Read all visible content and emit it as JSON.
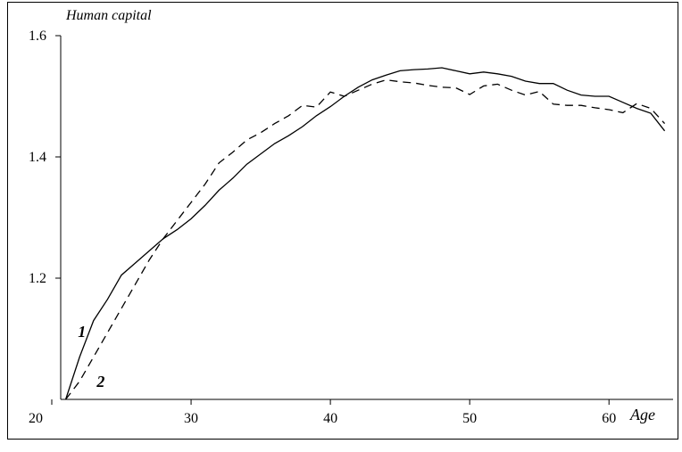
{
  "chart_data": {
    "type": "line",
    "y_label": "Human capital",
    "x_label": "Age",
    "x": [
      21,
      22,
      23,
      24,
      25,
      26,
      27,
      28,
      29,
      30,
      31,
      32,
      33,
      34,
      35,
      36,
      37,
      38,
      39,
      40,
      41,
      42,
      43,
      44,
      45,
      46,
      47,
      48,
      49,
      50,
      51,
      52,
      53,
      54,
      55,
      56,
      57,
      58,
      59,
      60,
      61,
      62,
      63,
      64
    ],
    "series": [
      {
        "name": "1",
        "color": "#000000",
        "dash": "solid",
        "values": [
          1.0,
          1.07,
          1.13,
          1.165,
          1.205,
          1.225,
          1.245,
          1.265,
          1.28,
          1.298,
          1.32,
          1.345,
          1.365,
          1.388,
          1.405,
          1.422,
          1.435,
          1.45,
          1.468,
          1.483,
          1.5,
          1.515,
          1.527,
          1.535,
          1.542,
          1.544,
          1.545,
          1.547,
          1.542,
          1.537,
          1.54,
          1.537,
          1.533,
          1.525,
          1.521,
          1.521,
          1.51,
          1.502,
          1.5,
          1.5,
          1.49,
          1.48,
          1.472,
          1.443
        ]
      },
      {
        "name": "2",
        "color": "#000000",
        "dash": "dashed",
        "values": [
          1.0,
          1.03,
          1.07,
          1.11,
          1.15,
          1.19,
          1.23,
          1.265,
          1.295,
          1.325,
          1.355,
          1.39,
          1.408,
          1.428,
          1.44,
          1.455,
          1.468,
          1.485,
          1.482,
          1.507,
          1.5,
          1.51,
          1.52,
          1.527,
          1.524,
          1.522,
          1.518,
          1.515,
          1.514,
          1.503,
          1.517,
          1.52,
          1.51,
          1.502,
          1.508,
          1.487,
          1.485,
          1.485,
          1.481,
          1.478,
          1.473,
          1.488,
          1.48,
          1.455
        ]
      }
    ],
    "xlim": [
      20,
      64.6
    ],
    "ylim": [
      1.0,
      1.6
    ],
    "xticks": [
      20,
      30,
      40,
      50,
      60
    ],
    "yticks": [
      1.2,
      1.4,
      1.6
    ],
    "grid": false
  }
}
